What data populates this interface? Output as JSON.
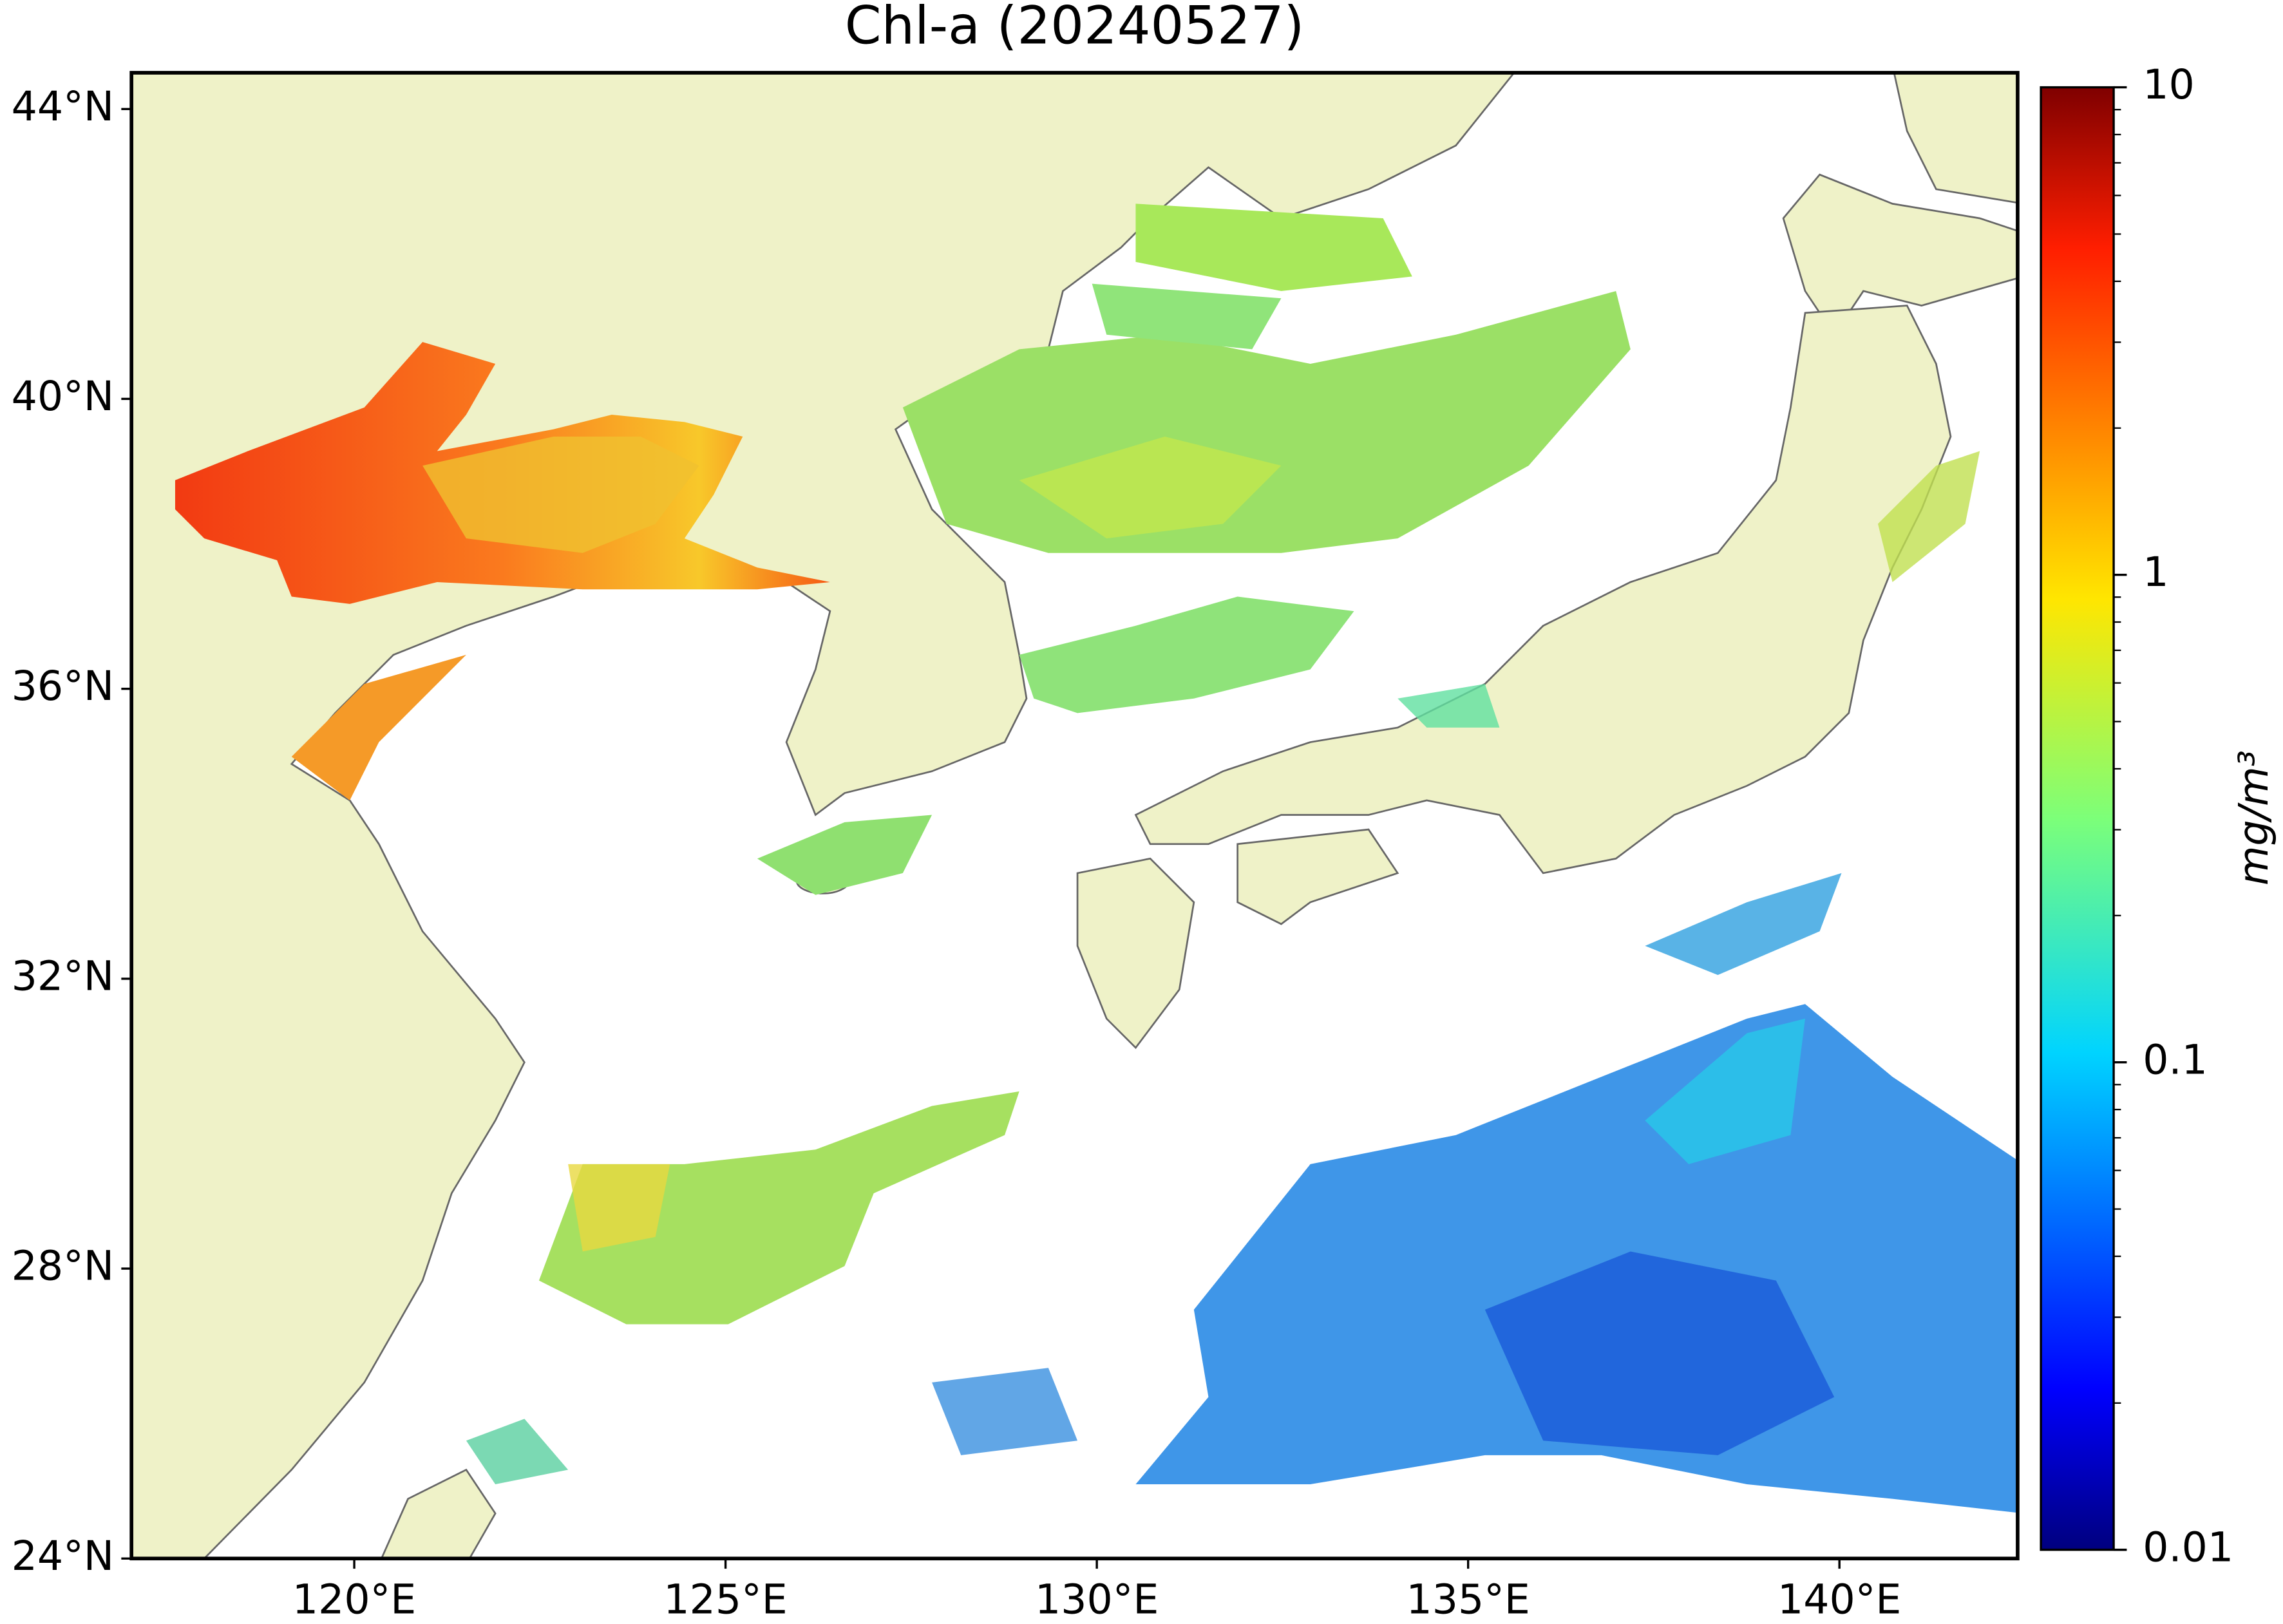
{
  "title": "Chl-a (20240527)",
  "map": {
    "xlim": [
      117,
      142.4
    ],
    "ylim": [
      24,
      44.5
    ],
    "xticks": [
      {
        "value": 120,
        "label": "120°E"
      },
      {
        "value": 125,
        "label": "125°E"
      },
      {
        "value": 130,
        "label": "130°E"
      },
      {
        "value": 135,
        "label": "135°E"
      },
      {
        "value": 140,
        "label": "140°E"
      }
    ],
    "yticks": [
      {
        "value": 24,
        "label": "24°N"
      },
      {
        "value": 28,
        "label": "28°N"
      },
      {
        "value": 32,
        "label": "32°N"
      },
      {
        "value": 36,
        "label": "36°N"
      },
      {
        "value": 40,
        "label": "40°N"
      },
      {
        "value": 44,
        "label": "44°N"
      }
    ]
  },
  "colorbar": {
    "lim": [
      0.01,
      10
    ],
    "log": true,
    "ticks": [
      0.01,
      0.1,
      1,
      10
    ],
    "label": "mg/m³"
  }
}
